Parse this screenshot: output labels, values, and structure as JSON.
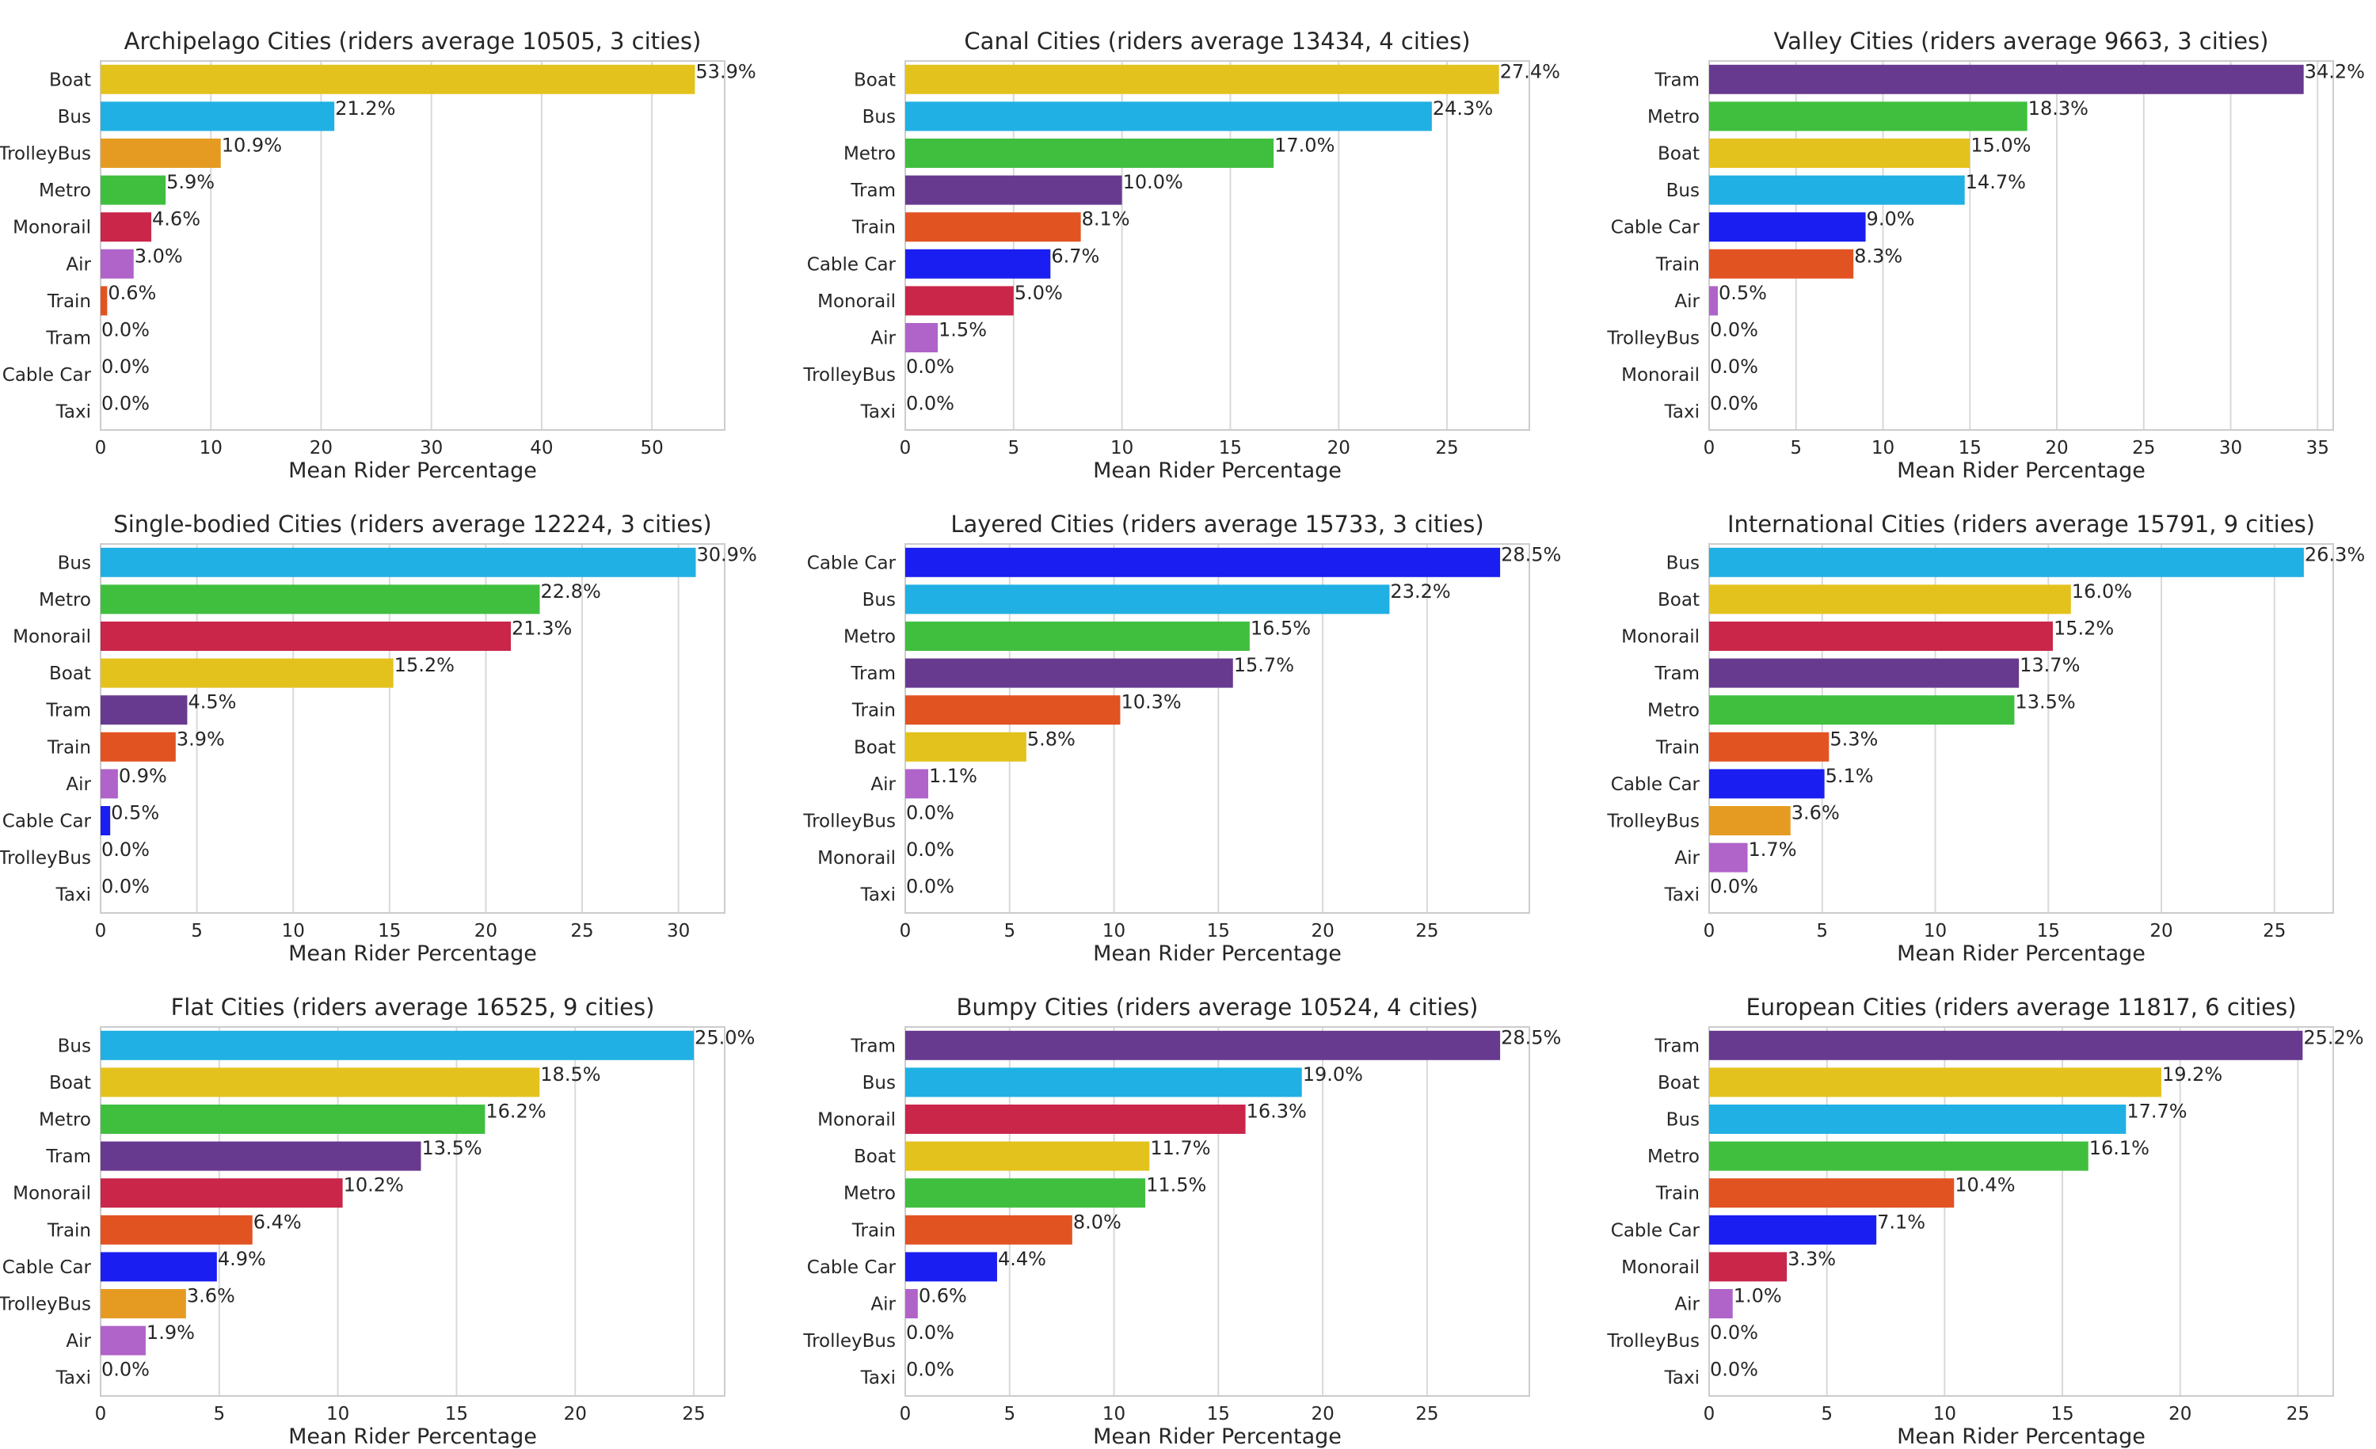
{
  "chart_data": [
    {
      "type": "bar",
      "orientation": "horizontal",
      "title": "Archipelago Cities (riders average 10505, 3 cities)",
      "xlabel": "Mean Rider Percentage",
      "ylabel": "",
      "xlim": [
        0,
        56.6
      ],
      "xticks": [
        0,
        10,
        20,
        30,
        40,
        50
      ],
      "grid": "vertical",
      "categories": [
        "Boat",
        "Bus",
        "TrolleyBus",
        "Metro",
        "Monorail",
        "Air",
        "Train",
        "Tram",
        "Cable Car",
        "Taxi"
      ],
      "values": [
        53.9,
        21.2,
        10.9,
        5.9,
        4.6,
        3.0,
        0.6,
        0.0,
        0.0,
        0.0
      ],
      "labels": [
        "53.9%",
        "21.2%",
        "10.9%",
        "5.9%",
        "4.6%",
        "3.0%",
        "0.6%",
        "0.0%",
        "0.0%",
        "0.0%"
      ]
    },
    {
      "type": "bar",
      "orientation": "horizontal",
      "title": "Canal Cities (riders average 13434, 4 cities)",
      "xlabel": "Mean Rider Percentage",
      "ylabel": "",
      "xlim": [
        0,
        28.8
      ],
      "xticks": [
        0,
        5,
        10,
        15,
        20,
        25
      ],
      "grid": "vertical",
      "categories": [
        "Boat",
        "Bus",
        "Metro",
        "Tram",
        "Train",
        "Cable Car",
        "Monorail",
        "Air",
        "TrolleyBus",
        "Taxi"
      ],
      "values": [
        27.4,
        24.3,
        17.0,
        10.0,
        8.1,
        6.7,
        5.0,
        1.5,
        0.0,
        0.0
      ],
      "labels": [
        "27.4%",
        "24.3%",
        "17.0%",
        "10.0%",
        "8.1%",
        "6.7%",
        "5.0%",
        "1.5%",
        "0.0%",
        "0.0%"
      ]
    },
    {
      "type": "bar",
      "orientation": "horizontal",
      "title": "Valley Cities (riders average 9663, 3 cities)",
      "xlabel": "Mean Rider Percentage",
      "ylabel": "",
      "xlim": [
        0,
        35.9
      ],
      "xticks": [
        0,
        5,
        10,
        15,
        20,
        25,
        30,
        35
      ],
      "grid": "vertical",
      "categories": [
        "Tram",
        "Metro",
        "Boat",
        "Bus",
        "Cable Car",
        "Train",
        "Air",
        "TrolleyBus",
        "Monorail",
        "Taxi"
      ],
      "values": [
        34.2,
        18.3,
        15.0,
        14.7,
        9.0,
        8.3,
        0.5,
        0.0,
        0.0,
        0.0
      ],
      "labels": [
        "34.2%",
        "18.3%",
        "15.0%",
        "14.7%",
        "9.0%",
        "8.3%",
        "0.5%",
        "0.0%",
        "0.0%",
        "0.0%"
      ]
    },
    {
      "type": "bar",
      "orientation": "horizontal",
      "title": "Single-bodied Cities (riders average 12224, 3 cities)",
      "xlabel": "Mean Rider Percentage",
      "ylabel": "",
      "xlim": [
        0,
        32.4
      ],
      "xticks": [
        0,
        5,
        10,
        15,
        20,
        25,
        30
      ],
      "grid": "vertical",
      "categories": [
        "Bus",
        "Metro",
        "Monorail",
        "Boat",
        "Tram",
        "Train",
        "Air",
        "Cable Car",
        "TrolleyBus",
        "Taxi"
      ],
      "values": [
        30.9,
        22.8,
        21.3,
        15.2,
        4.5,
        3.9,
        0.9,
        0.5,
        0.0,
        0.0
      ],
      "labels": [
        "30.9%",
        "22.8%",
        "21.3%",
        "15.2%",
        "4.5%",
        "3.9%",
        "0.9%",
        "0.5%",
        "0.0%",
        "0.0%"
      ]
    },
    {
      "type": "bar",
      "orientation": "horizontal",
      "title": "Layered Cities (riders average 15733, 3 cities)",
      "xlabel": "Mean Rider Percentage",
      "ylabel": "",
      "xlim": [
        0,
        29.9
      ],
      "xticks": [
        0,
        5,
        10,
        15,
        20,
        25
      ],
      "grid": "vertical",
      "categories": [
        "Cable Car",
        "Bus",
        "Metro",
        "Tram",
        "Train",
        "Boat",
        "Air",
        "TrolleyBus",
        "Monorail",
        "Taxi"
      ],
      "values": [
        28.5,
        23.2,
        16.5,
        15.7,
        10.3,
        5.8,
        1.1,
        0.0,
        0.0,
        0.0
      ],
      "labels": [
        "28.5%",
        "23.2%",
        "16.5%",
        "15.7%",
        "10.3%",
        "5.8%",
        "1.1%",
        "0.0%",
        "0.0%",
        "0.0%"
      ]
    },
    {
      "type": "bar",
      "orientation": "horizontal",
      "title": "International Cities (riders average 15791, 9 cities)",
      "xlabel": "Mean Rider Percentage",
      "ylabel": "",
      "xlim": [
        0,
        27.6
      ],
      "xticks": [
        0,
        5,
        10,
        15,
        20,
        25
      ],
      "grid": "vertical",
      "categories": [
        "Bus",
        "Boat",
        "Monorail",
        "Tram",
        "Metro",
        "Train",
        "Cable Car",
        "TrolleyBus",
        "Air",
        "Taxi"
      ],
      "values": [
        26.3,
        16.0,
        15.2,
        13.7,
        13.5,
        5.3,
        5.1,
        3.6,
        1.7,
        0.0
      ],
      "labels": [
        "26.3%",
        "16.0%",
        "15.2%",
        "13.7%",
        "13.5%",
        "5.3%",
        "5.1%",
        "3.6%",
        "1.7%",
        "0.0%"
      ]
    },
    {
      "type": "bar",
      "orientation": "horizontal",
      "title": "Flat Cities (riders average 16525, 9 cities)",
      "xlabel": "Mean Rider Percentage",
      "ylabel": "",
      "xlim": [
        0,
        26.3
      ],
      "xticks": [
        0,
        5,
        10,
        15,
        20,
        25
      ],
      "grid": "vertical",
      "categories": [
        "Bus",
        "Boat",
        "Metro",
        "Tram",
        "Monorail",
        "Train",
        "Cable Car",
        "TrolleyBus",
        "Air",
        "Taxi"
      ],
      "values": [
        25.0,
        18.5,
        16.2,
        13.5,
        10.2,
        6.4,
        4.9,
        3.6,
        1.9,
        0.0
      ],
      "labels": [
        "25.0%",
        "18.5%",
        "16.2%",
        "13.5%",
        "10.2%",
        "6.4%",
        "4.9%",
        "3.6%",
        "1.9%",
        "0.0%"
      ]
    },
    {
      "type": "bar",
      "orientation": "horizontal",
      "title": "Bumpy Cities (riders average 10524, 4 cities)",
      "xlabel": "Mean Rider Percentage",
      "ylabel": "",
      "xlim": [
        0,
        29.9
      ],
      "xticks": [
        0,
        5,
        10,
        15,
        20,
        25
      ],
      "grid": "vertical",
      "categories": [
        "Tram",
        "Bus",
        "Monorail",
        "Boat",
        "Metro",
        "Train",
        "Cable Car",
        "Air",
        "TrolleyBus",
        "Taxi"
      ],
      "values": [
        28.5,
        19.0,
        16.3,
        11.7,
        11.5,
        8.0,
        4.4,
        0.6,
        0.0,
        0.0
      ],
      "labels": [
        "28.5%",
        "19.0%",
        "16.3%",
        "11.7%",
        "11.5%",
        "8.0%",
        "4.4%",
        "0.6%",
        "0.0%",
        "0.0%"
      ]
    },
    {
      "type": "bar",
      "orientation": "horizontal",
      "title": "European Cities (riders average 11817, 6 cities)",
      "xlabel": "Mean Rider Percentage",
      "ylabel": "",
      "xlim": [
        0,
        26.5
      ],
      "xticks": [
        0,
        5,
        10,
        15,
        20,
        25
      ],
      "grid": "vertical",
      "categories": [
        "Tram",
        "Boat",
        "Bus",
        "Metro",
        "Train",
        "Cable Car",
        "Monorail",
        "Air",
        "TrolleyBus",
        "Taxi"
      ],
      "values": [
        25.2,
        19.2,
        17.7,
        16.1,
        10.4,
        7.1,
        3.3,
        1.0,
        0.0,
        0.0
      ],
      "labels": [
        "25.2%",
        "19.2%",
        "17.7%",
        "16.1%",
        "10.4%",
        "7.1%",
        "3.3%",
        "1.0%",
        "0.0%",
        "0.0%"
      ]
    }
  ],
  "colors": {
    "Boat": "#e4c21d",
    "Bus": "#20b0e3",
    "TrolleyBus": "#e59b22",
    "Metro": "#40bf3f",
    "Monorail": "#c9264a",
    "Air": "#b063c9",
    "Train": "#e25322",
    "Tram": "#683a8f",
    "Cable Car": "#1a1ef0",
    "Taxi": "#f0c419"
  },
  "style": {
    "grid_color": "#d9d9d9",
    "spine_color": "#cccccc",
    "text_color": "#262626"
  }
}
